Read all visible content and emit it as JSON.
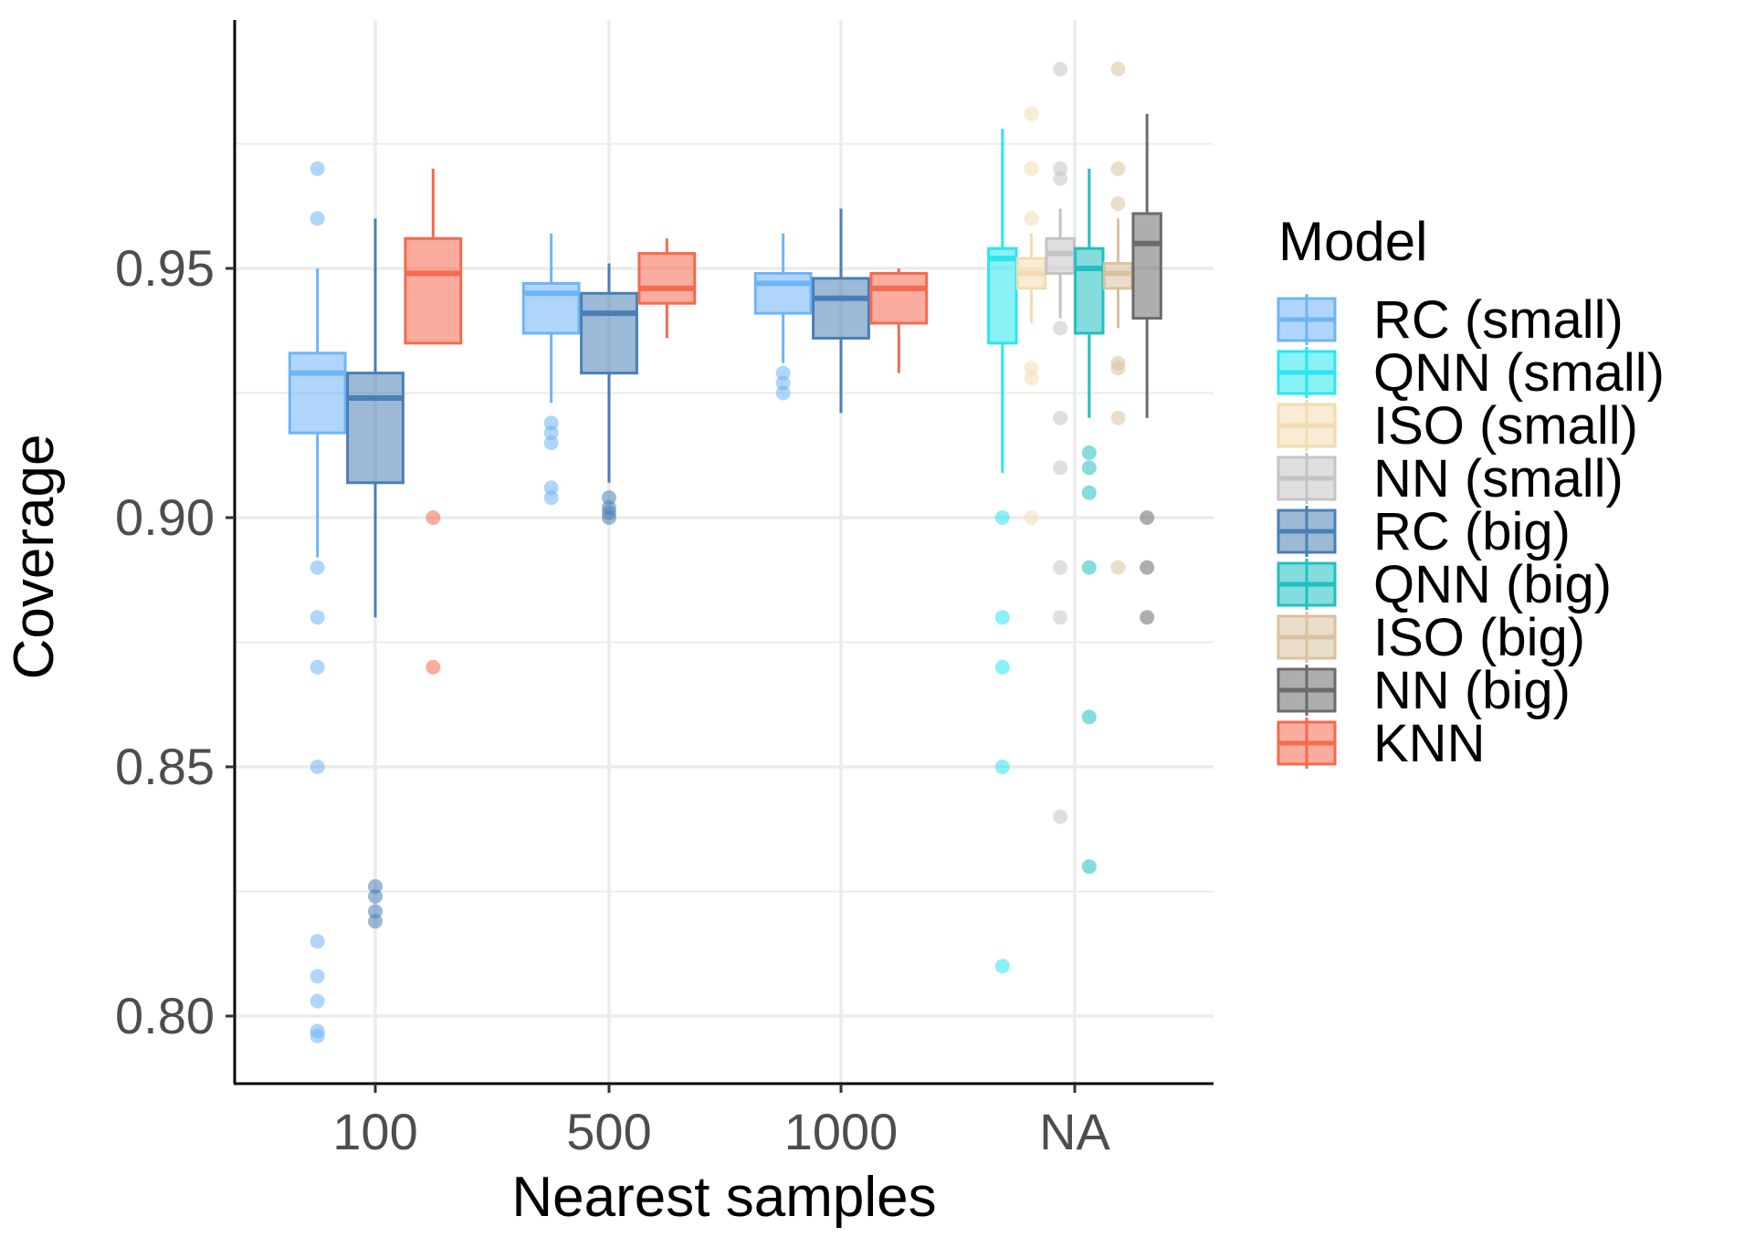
{
  "chart_data": {
    "type": "boxplot",
    "title": "",
    "xlabel": "Nearest samples",
    "ylabel": "Coverage",
    "ylim": [
      0.787,
      1.0
    ],
    "y_ticks": [
      0.8,
      0.85,
      0.9,
      0.95
    ],
    "y_tick_labels": [
      "0.80",
      "0.85",
      "0.90",
      "0.95"
    ],
    "categories": [
      "100",
      "500",
      "1000",
      "NA"
    ],
    "grid": true,
    "legend": {
      "title": "Model",
      "position": "right",
      "items": [
        {
          "name": "RC (small)",
          "color": "#6eb5f5"
        },
        {
          "name": "QNN (small)",
          "color": "#29e6f0"
        },
        {
          "name": "ISO (small)",
          "color": "#f2dcb0"
        },
        {
          "name": "NN (small)",
          "color": "#c4c4c4"
        },
        {
          "name": "RC (big)",
          "color": "#4a7fb5"
        },
        {
          "name": "QNN (big)",
          "color": "#20c0c0"
        },
        {
          "name": "ISO (big)",
          "color": "#d9c29e"
        },
        {
          "name": "NN (big)",
          "color": "#6b6b6b"
        },
        {
          "name": "KNN",
          "color": "#f56a4e"
        }
      ]
    },
    "series": [
      {
        "name": "RC (small)",
        "category": "100",
        "slot": 0,
        "slots": 3,
        "min": 0.892,
        "q1": 0.917,
        "median": 0.929,
        "q3": 0.933,
        "max": 0.95,
        "outliers": [
          0.97,
          0.96,
          0.89,
          0.88,
          0.87,
          0.85,
          0.815,
          0.808,
          0.803,
          0.797,
          0.796
        ]
      },
      {
        "name": "RC (big)",
        "category": "100",
        "slot": 1,
        "slots": 3,
        "min": 0.88,
        "q1": 0.907,
        "median": 0.924,
        "q3": 0.929,
        "max": 0.96,
        "outliers": [
          0.826,
          0.824,
          0.821,
          0.819
        ]
      },
      {
        "name": "KNN",
        "category": "100",
        "slot": 2,
        "slots": 3,
        "min": 0.935,
        "q1": 0.935,
        "median": 0.949,
        "q3": 0.956,
        "max": 0.97,
        "outliers": [
          0.9,
          0.87
        ]
      },
      {
        "name": "RC (small)",
        "category": "500",
        "slot": 0,
        "slots": 3,
        "min": 0.923,
        "q1": 0.937,
        "median": 0.945,
        "q3": 0.947,
        "max": 0.957,
        "outliers": [
          0.919,
          0.917,
          0.915,
          0.906,
          0.904
        ]
      },
      {
        "name": "RC (big)",
        "category": "500",
        "slot": 1,
        "slots": 3,
        "min": 0.907,
        "q1": 0.929,
        "median": 0.941,
        "q3": 0.945,
        "max": 0.951,
        "outliers": [
          0.904,
          0.902,
          0.901,
          0.9
        ]
      },
      {
        "name": "KNN",
        "category": "500",
        "slot": 2,
        "slots": 3,
        "min": 0.936,
        "q1": 0.943,
        "median": 0.946,
        "q3": 0.953,
        "max": 0.956,
        "outliers": []
      },
      {
        "name": "RC (small)",
        "category": "1000",
        "slot": 0,
        "slots": 3,
        "min": 0.931,
        "q1": 0.941,
        "median": 0.947,
        "q3": 0.949,
        "max": 0.957,
        "outliers": [
          0.929,
          0.927,
          0.925
        ]
      },
      {
        "name": "RC (big)",
        "category": "1000",
        "slot": 1,
        "slots": 3,
        "min": 0.921,
        "q1": 0.936,
        "median": 0.944,
        "q3": 0.948,
        "max": 0.962,
        "outliers": []
      },
      {
        "name": "KNN",
        "category": "1000",
        "slot": 2,
        "slots": 3,
        "min": 0.929,
        "q1": 0.939,
        "median": 0.946,
        "q3": 0.949,
        "max": 0.95,
        "outliers": []
      },
      {
        "name": "QNN (small)",
        "category": "NA",
        "slot": 0,
        "slots": 6,
        "min": 0.909,
        "q1": 0.935,
        "median": 0.952,
        "q3": 0.954,
        "max": 0.978,
        "outliers": [
          0.9,
          0.88,
          0.87,
          0.85,
          0.81
        ]
      },
      {
        "name": "ISO (small)",
        "category": "NA",
        "slot": 1,
        "slots": 6,
        "min": 0.939,
        "q1": 0.946,
        "median": 0.949,
        "q3": 0.952,
        "max": 0.957,
        "outliers": [
          0.981,
          0.97,
          0.96,
          0.93,
          0.928,
          0.9
        ]
      },
      {
        "name": "NN (small)",
        "category": "NA",
        "slot": 2,
        "slots": 6,
        "min": 0.94,
        "q1": 0.949,
        "median": 0.953,
        "q3": 0.956,
        "max": 0.962,
        "outliers": [
          0.99,
          0.97,
          0.968,
          0.938,
          0.92,
          0.91,
          0.89,
          0.88,
          0.84
        ]
      },
      {
        "name": "QNN (big)",
        "category": "NA",
        "slot": 3,
        "slots": 6,
        "min": 0.92,
        "q1": 0.937,
        "median": 0.95,
        "q3": 0.954,
        "max": 0.97,
        "outliers": [
          0.913,
          0.91,
          0.905,
          0.89,
          0.86,
          0.83
        ]
      },
      {
        "name": "ISO (big)",
        "category": "NA",
        "slot": 4,
        "slots": 6,
        "min": 0.938,
        "q1": 0.946,
        "median": 0.949,
        "q3": 0.951,
        "max": 0.96,
        "outliers": [
          0.99,
          0.97,
          0.963,
          0.931,
          0.93,
          0.92,
          0.89
        ]
      },
      {
        "name": "NN (big)",
        "category": "NA",
        "slot": 5,
        "slots": 6,
        "min": 0.92,
        "q1": 0.94,
        "median": 0.955,
        "q3": 0.961,
        "max": 0.981,
        "outliers": [
          0.9,
          0.89,
          0.88
        ]
      }
    ]
  }
}
